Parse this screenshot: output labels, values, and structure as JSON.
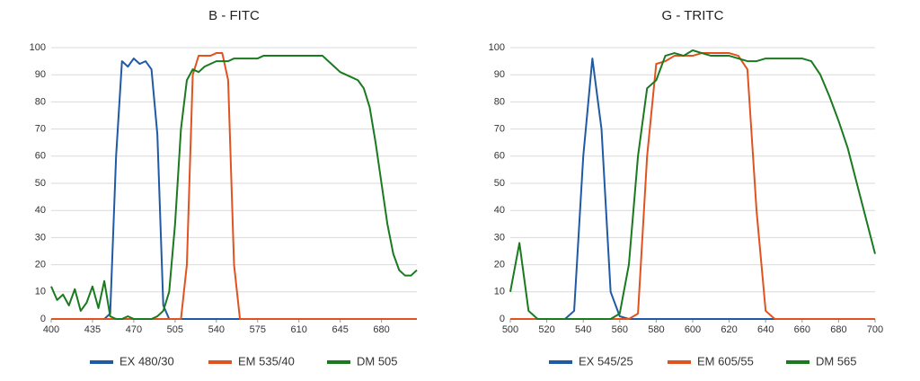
{
  "chart_data": [
    {
      "type": "line",
      "title": "B - FITC",
      "x": [
        400,
        405,
        410,
        415,
        420,
        425,
        430,
        435,
        440,
        445,
        450,
        455,
        460,
        465,
        470,
        475,
        480,
        485,
        490,
        495,
        500,
        505,
        510,
        515,
        520,
        525,
        530,
        535,
        540,
        545,
        550,
        555,
        560,
        565,
        570,
        575,
        580,
        585,
        590,
        595,
        600,
        605,
        610,
        615,
        620,
        625,
        630,
        635,
        640,
        645,
        650,
        655,
        660,
        665,
        670,
        675,
        680,
        685,
        690,
        695,
        700,
        705,
        710
      ],
      "xlim": [
        400,
        710
      ],
      "xticks": [
        400,
        435,
        470,
        505,
        540,
        575,
        610,
        645,
        680
      ],
      "ylim": [
        0,
        100
      ],
      "yticks": [
        0,
        10,
        20,
        30,
        40,
        50,
        60,
        70,
        80,
        90,
        100
      ],
      "grid": true,
      "series": [
        {
          "name": "EX 480/30",
          "color": "#1f5aa6",
          "values": [
            0,
            0,
            0,
            0,
            0,
            0,
            0,
            0,
            0,
            0,
            2,
            60,
            95,
            93,
            96,
            94,
            95,
            92,
            68,
            5,
            0,
            0,
            0,
            0,
            0,
            0,
            0,
            0,
            0,
            0,
            0,
            0,
            0,
            0,
            0,
            0,
            0,
            0,
            0,
            0,
            0,
            0,
            0,
            0,
            0,
            0,
            0,
            0,
            0,
            0,
            0,
            0,
            0,
            0,
            0,
            0,
            0,
            0,
            0,
            0,
            0,
            0,
            0
          ]
        },
        {
          "name": "EM 535/40",
          "color": "#e0531f",
          "values": [
            0,
            0,
            0,
            0,
            0,
            0,
            0,
            0,
            0,
            0,
            0,
            0,
            0,
            0,
            0,
            0,
            0,
            0,
            0,
            0,
            0,
            0,
            0,
            20,
            90,
            97,
            97,
            97,
            98,
            98,
            88,
            20,
            0,
            0,
            0,
            0,
            0,
            0,
            0,
            0,
            0,
            0,
            0,
            0,
            0,
            0,
            0,
            0,
            0,
            0,
            0,
            0,
            0,
            0,
            0,
            0,
            0,
            0,
            0,
            0,
            0,
            0,
            0
          ]
        },
        {
          "name": "DM 505",
          "color": "#1a7a1f",
          "values": [
            12,
            7,
            9,
            5,
            11,
            3,
            6,
            12,
            4,
            14,
            1,
            0,
            0,
            1,
            0,
            0,
            0,
            0,
            1,
            3,
            10,
            35,
            70,
            88,
            92,
            91,
            93,
            94,
            95,
            95,
            95,
            96,
            96,
            96,
            96,
            96,
            97,
            97,
            97,
            97,
            97,
            97,
            97,
            97,
            97,
            97,
            97,
            95,
            93,
            91,
            90,
            89,
            88,
            85,
            78,
            65,
            50,
            35,
            24,
            18,
            16,
            16,
            18
          ]
        }
      ]
    },
    {
      "type": "line",
      "title": "G - TRITC",
      "x": [
        500,
        505,
        510,
        515,
        520,
        525,
        530,
        535,
        540,
        545,
        550,
        555,
        560,
        565,
        570,
        575,
        580,
        585,
        590,
        595,
        600,
        605,
        610,
        615,
        620,
        625,
        630,
        635,
        640,
        645,
        650,
        655,
        660,
        665,
        670,
        675,
        680,
        685,
        690,
        695,
        700
      ],
      "xlim": [
        500,
        700
      ],
      "xticks": [
        500,
        520,
        540,
        560,
        580,
        600,
        620,
        640,
        660,
        680,
        700
      ],
      "ylim": [
        0,
        100
      ],
      "yticks": [
        0,
        10,
        20,
        30,
        40,
        50,
        60,
        70,
        80,
        90,
        100
      ],
      "grid": true,
      "series": [
        {
          "name": "EX 545/25",
          "color": "#1f5aa6",
          "values": [
            0,
            0,
            0,
            0,
            0,
            0,
            0,
            3,
            60,
            96,
            70,
            10,
            1,
            0,
            0,
            0,
            0,
            0,
            0,
            0,
            0,
            0,
            0,
            0,
            0,
            0,
            0,
            0,
            0,
            0,
            0,
            0,
            0,
            0,
            0,
            0,
            0,
            0,
            0,
            0,
            0
          ]
        },
        {
          "name": "EM 605/55",
          "color": "#e0531f",
          "values": [
            0,
            0,
            0,
            0,
            0,
            0,
            0,
            0,
            0,
            0,
            0,
            0,
            0,
            0,
            2,
            60,
            94,
            95,
            97,
            97,
            97,
            98,
            98,
            98,
            98,
            97,
            92,
            40,
            3,
            0,
            0,
            0,
            0,
            0,
            0,
            0,
            0,
            0,
            0,
            0,
            0
          ]
        },
        {
          "name": "DM 565",
          "color": "#1a7a1f",
          "values": [
            10,
            28,
            3,
            0,
            0,
            0,
            0,
            0,
            0,
            0,
            0,
            0,
            2,
            20,
            60,
            85,
            88,
            97,
            98,
            97,
            99,
            98,
            97,
            97,
            97,
            96,
            95,
            95,
            96,
            96,
            96,
            96,
            96,
            95,
            90,
            82,
            73,
            63,
            50,
            37,
            24
          ]
        }
      ]
    }
  ]
}
